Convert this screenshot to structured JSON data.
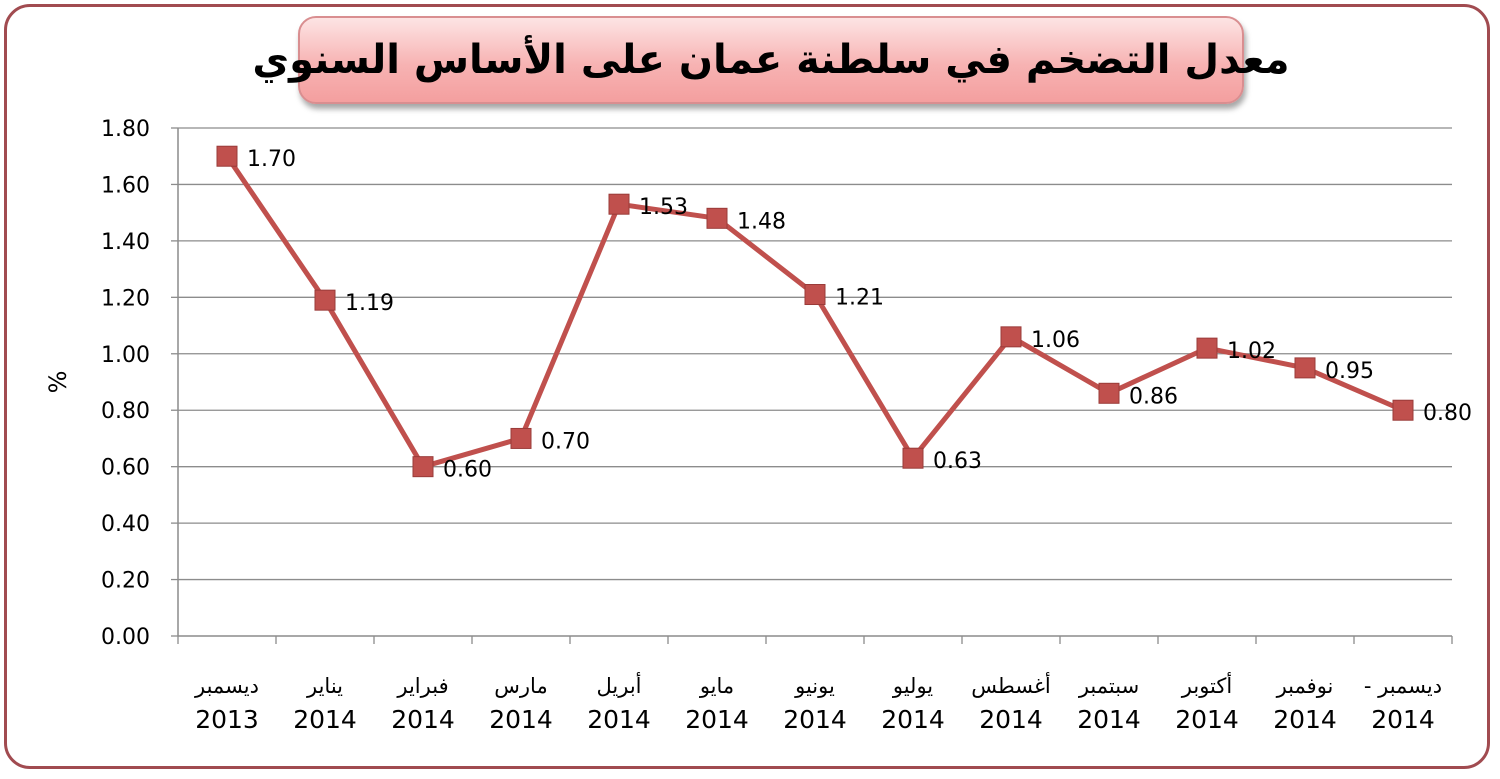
{
  "chart_data": {
    "type": "line",
    "title": "معدل التضخم في سلطنة عمان على الأساس السنوي",
    "xlabel": "",
    "ylabel": "%",
    "ylim": [
      0,
      1.8
    ],
    "yticks": [
      "0.00",
      "0.20",
      "0.40",
      "0.60",
      "0.80",
      "1.00",
      "1.20",
      "1.40",
      "1.60",
      "1.80"
    ],
    "grid": true,
    "legend": "none",
    "categories": [
      {
        "month": "ديسمبر",
        "year": "2013"
      },
      {
        "month": "يناير",
        "year": "2014"
      },
      {
        "month": "فبراير",
        "year": "2014"
      },
      {
        "month": "مارس",
        "year": "2014"
      },
      {
        "month": "أبريل",
        "year": "2014"
      },
      {
        "month": "مايو",
        "year": "2014"
      },
      {
        "month": "يونيو",
        "year": "2014"
      },
      {
        "month": "يوليو",
        "year": "2014"
      },
      {
        "month": "أغسطس",
        "year": "2014"
      },
      {
        "month": "سبتمبر",
        "year": "2014"
      },
      {
        "month": "أكتوبر",
        "year": "2014"
      },
      {
        "month": "نوفمبر",
        "year": "2014"
      },
      {
        "month": "ديسمبر -",
        "year": "2014"
      }
    ],
    "values": [
      1.7,
      1.19,
      0.6,
      0.7,
      1.53,
      1.48,
      1.21,
      0.63,
      1.06,
      0.86,
      1.02,
      0.95,
      0.8
    ],
    "data_labels": [
      "1.70",
      "1.19",
      "0.60",
      "0.70",
      "1.53",
      "1.48",
      "1.21",
      "0.63",
      "1.06",
      "0.86",
      "1.02",
      "0.95",
      "0.80"
    ],
    "line_color": "#c0504d",
    "marker_color": "#c0504d"
  }
}
